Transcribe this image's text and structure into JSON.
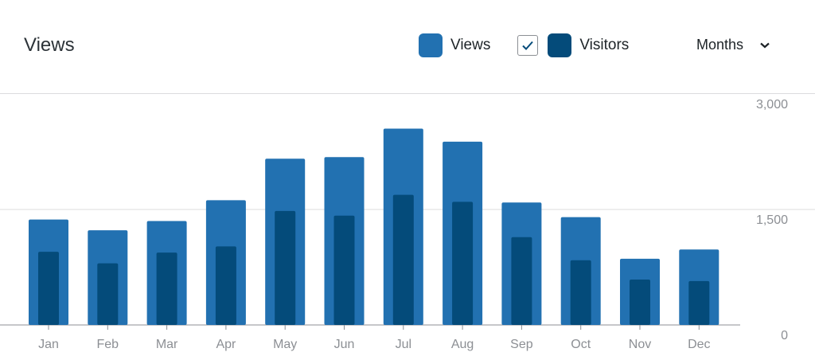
{
  "header": {
    "title": "Views",
    "period_label": "Months"
  },
  "legend": {
    "views_label": "Views",
    "visitors_label": "Visitors",
    "visitors_checked": true
  },
  "colors": {
    "views": "#2271b1",
    "visitors": "#044b7a",
    "gridline": "#dcdcde",
    "axis": "#8c8f94",
    "tick_text": "#8c8f94"
  },
  "icons": {
    "checkbox": "checkmark-icon",
    "period": "chevron-down-icon"
  },
  "chart_data": {
    "type": "bar",
    "categories": [
      "Jan",
      "Feb",
      "Mar",
      "Apr",
      "May",
      "Jun",
      "Jul",
      "Aug",
      "Sep",
      "Oct",
      "Nov",
      "Dec"
    ],
    "series": [
      {
        "name": "Views",
        "values": [
          1370,
          1230,
          1350,
          1620,
          2160,
          2180,
          2550,
          2380,
          1590,
          1400,
          860,
          980
        ]
      },
      {
        "name": "Visitors",
        "values": [
          950,
          800,
          940,
          1020,
          1480,
          1420,
          1690,
          1600,
          1140,
          840,
          590,
          570
        ]
      }
    ],
    "y_ticks": [
      "3,000",
      "1,500",
      "0"
    ],
    "y_tick_values": [
      3000,
      1500,
      0
    ],
    "ylim": [
      0,
      3000
    ],
    "grid": true,
    "y_axis_position": "right",
    "legend_position": "top-right"
  }
}
